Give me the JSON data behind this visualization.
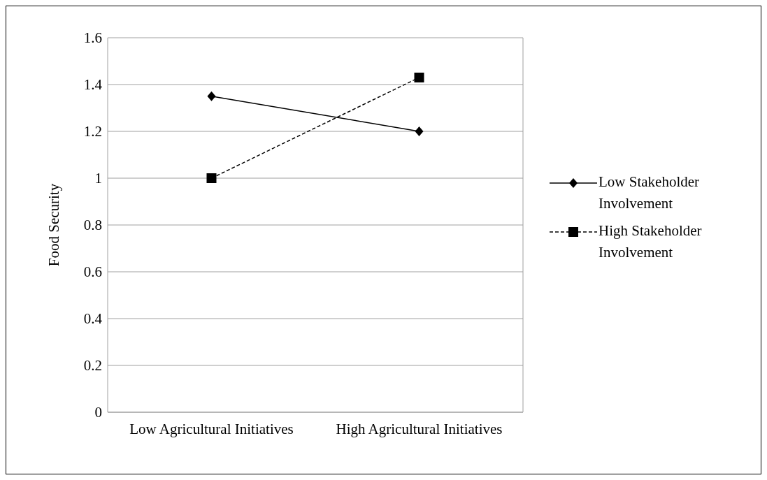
{
  "chart_data": {
    "type": "line",
    "ylabel": "Food Security",
    "categories": [
      "Low Agricultural Initiatives",
      "High Agricultural Initiatives"
    ],
    "series": [
      {
        "name": "Low Stakeholder Involvement",
        "color": "#000000",
        "values": [
          1.35,
          1.2
        ],
        "marker": "diamond",
        "line_style": "solid"
      },
      {
        "name": "High Stakeholder Involvement",
        "color": "#000000",
        "values": [
          1.0,
          1.43
        ],
        "marker": "square",
        "line_style": "dashed"
      }
    ],
    "ylim": [
      0,
      1.6
    ],
    "yticks": [
      0,
      0.2,
      0.4,
      0.6,
      0.8,
      1,
      1.2,
      1.4,
      1.6
    ],
    "grid": "y",
    "legend": "right"
  }
}
